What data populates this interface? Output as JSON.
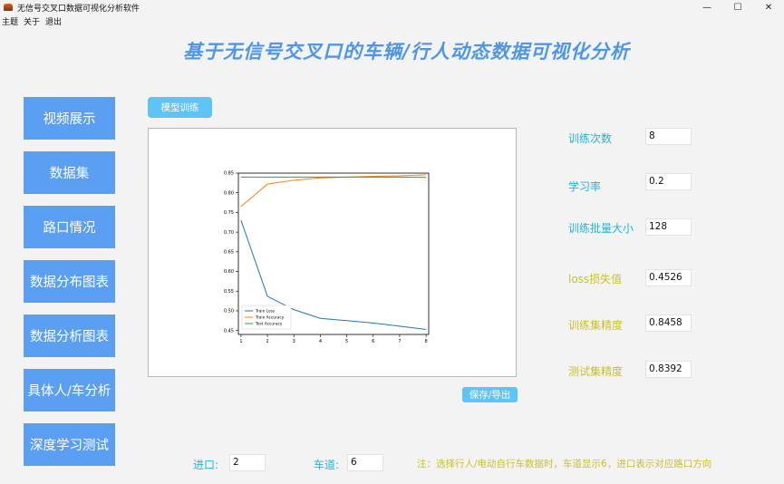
{
  "window": {
    "title": "无信号交叉口数据可视化分析软件",
    "controls": [
      "—",
      "☐",
      "✕"
    ]
  },
  "menu": [
    "主题",
    "关于",
    "退出"
  ],
  "main_title": "基于无信号交叉口的车辆/行人动态数据可视化分析",
  "sidebar": [
    {
      "label": "视频展示"
    },
    {
      "label": "数据集"
    },
    {
      "label": "路口情况"
    },
    {
      "label": "数据分布图表"
    },
    {
      "label": "数据分析图表"
    },
    {
      "label": "具体人/车分析"
    },
    {
      "label": "深度学习测试"
    }
  ],
  "train_button": "模型训练",
  "save_button": "保存/导出",
  "fields": [
    {
      "label": "训练次数",
      "value": "8",
      "color": "#22b4d8"
    },
    {
      "label": "学习率",
      "value": "0.2",
      "color": "#22b4d8"
    },
    {
      "label": "训练批量大小",
      "value": "128",
      "color": "#22b4d8"
    },
    {
      "label": "loss损失值",
      "value": "0.4526",
      "color": "#c9c12a"
    },
    {
      "label": "训练集精度",
      "value": "0.8458",
      "color": "#c9c12a"
    },
    {
      "label": "测试集精度",
      "value": "0.8392",
      "color": "#c9c12a"
    }
  ],
  "bottom": {
    "entry_label": "进口:",
    "entry_value": "2",
    "lane_label": "车道:",
    "lane_value": "6",
    "note": "注：选择行人/电动自行车数据时，车道显示6，进口表示对应路口方向"
  },
  "chart_data": {
    "type": "line",
    "x": [
      1,
      2,
      3,
      4,
      5,
      6,
      7,
      8
    ],
    "xlim": [
      0.9,
      8.1
    ],
    "ylim": [
      0.44,
      0.85
    ],
    "x_ticks": [
      "1",
      "2",
      "3",
      "4",
      "5",
      "6",
      "7",
      "8"
    ],
    "y_ticks": [
      "0.45",
      "0.50",
      "0.55",
      "0.60",
      "0.65",
      "0.70",
      "0.75",
      "0.80",
      "0.85"
    ],
    "legend_position": "lower-left",
    "series": [
      {
        "name": "Train Loss",
        "color": "#1f77b4",
        "values": [
          0.73,
          0.537,
          0.503,
          0.481,
          0.475,
          0.469,
          0.461,
          0.4526
        ]
      },
      {
        "name": "Train Accuracy",
        "color": "#ff7f0e",
        "values": [
          0.765,
          0.822,
          0.832,
          0.838,
          0.84,
          0.842,
          0.843,
          0.8458
        ]
      },
      {
        "name": "Test Accuracy",
        "color": "#2ca02c",
        "values": [
          0.84,
          0.84,
          0.84,
          0.84,
          0.84,
          0.84,
          0.84,
          0.8392
        ]
      }
    ]
  }
}
